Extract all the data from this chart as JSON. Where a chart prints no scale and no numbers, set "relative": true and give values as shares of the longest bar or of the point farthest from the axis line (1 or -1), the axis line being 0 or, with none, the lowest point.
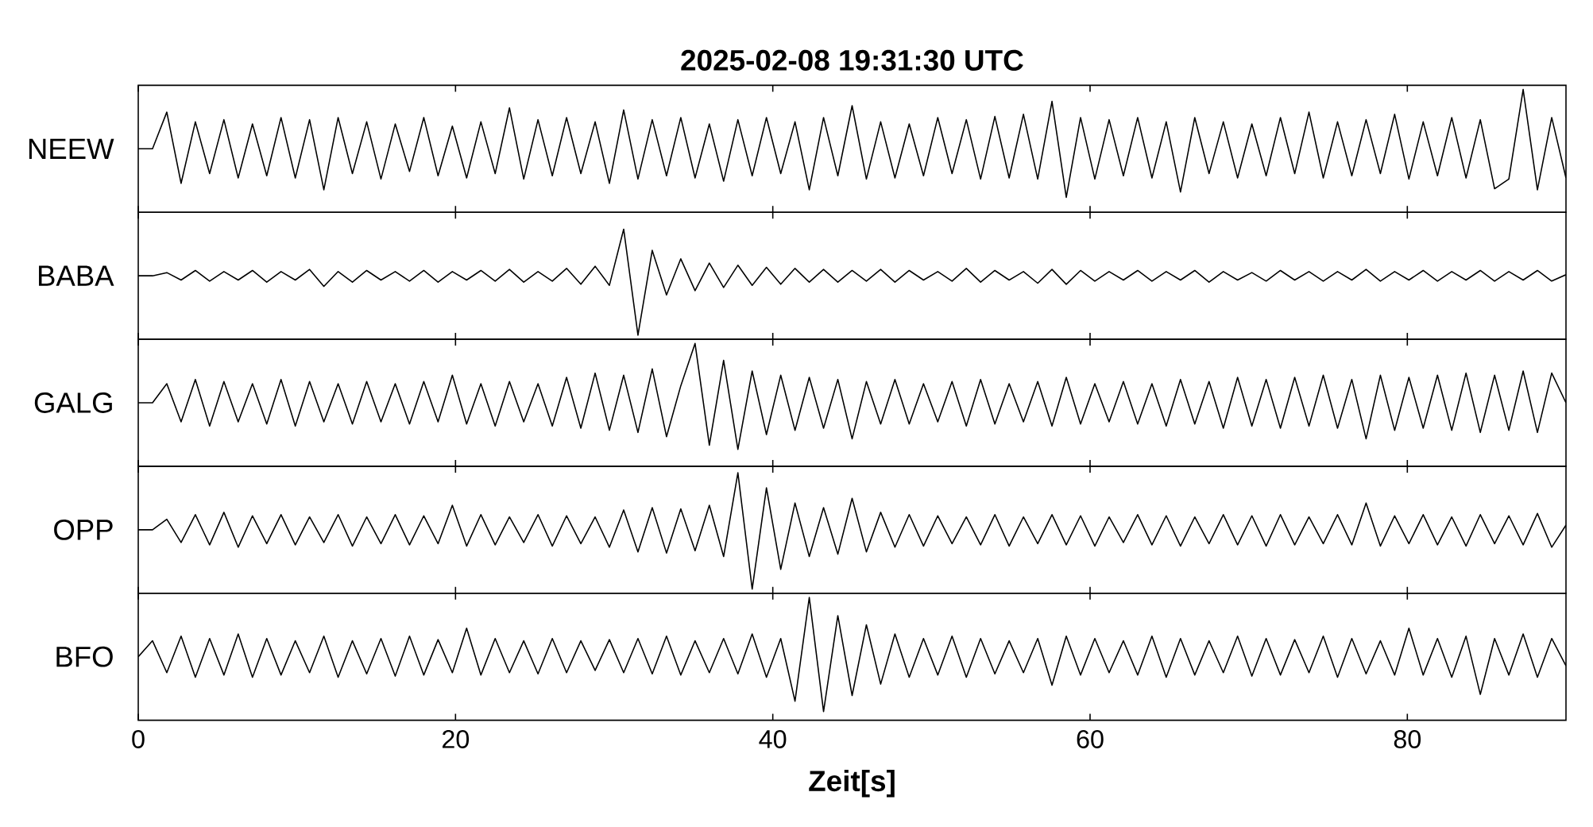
{
  "chart_data": [
    {
      "type": "line",
      "relative": true,
      "title": "2025-02-08 19:31:30 UTC",
      "ylabel": "NEEW",
      "xlim": [
        0,
        90
      ],
      "xticks": [
        0,
        20,
        40,
        60,
        80
      ],
      "tick_labels": false,
      "x": [
        0,
        0.9,
        1.8,
        2.7,
        3.6,
        4.5,
        5.4,
        6.3,
        7.2,
        8.1,
        9,
        9.9,
        10.8,
        11.7,
        12.6,
        13.5,
        14.4,
        15.3,
        16.2,
        17.1,
        18,
        18.9,
        19.8,
        20.7,
        21.6,
        22.5,
        23.4,
        24.3,
        25.2,
        26.1,
        27,
        27.9,
        28.8,
        29.7,
        30.6,
        31.5,
        32.4,
        33.3,
        34.2,
        35.1,
        36,
        36.9,
        37.8,
        38.7,
        39.6,
        40.5,
        41.4,
        42.3,
        43.2,
        44.1,
        45,
        45.9,
        46.8,
        47.7,
        48.6,
        49.5,
        50.4,
        51.3,
        52.2,
        53.1,
        54,
        54.9,
        55.8,
        56.7,
        57.6,
        58.5,
        59.4,
        60.3,
        61.2,
        62.1,
        63,
        63.9,
        64.8,
        65.7,
        66.6,
        67.5,
        68.4,
        69.3,
        70.2,
        71.1,
        72,
        72.9,
        73.8,
        74.7,
        75.6,
        76.5,
        77.4,
        78.3,
        79.2,
        80.1,
        81,
        81.9,
        82.8,
        83.7,
        84.6,
        85.5,
        86.4,
        87.3,
        88.2,
        89.1,
        90
      ],
      "series": [
        {
          "color": "#000000",
          "values": [
            0.45,
            0.45,
            0.79,
            0.13,
            0.7,
            0.22,
            0.72,
            0.18,
            0.68,
            0.2,
            0.74,
            0.18,
            0.72,
            0.07,
            0.74,
            0.22,
            0.7,
            0.17,
            0.68,
            0.24,
            0.74,
            0.2,
            0.66,
            0.18,
            0.7,
            0.22,
            0.83,
            0.17,
            0.72,
            0.2,
            0.74,
            0.22,
            0.7,
            0.13,
            0.81,
            0.17,
            0.72,
            0.2,
            0.74,
            0.18,
            0.68,
            0.15,
            0.72,
            0.2,
            0.74,
            0.22,
            0.7,
            0.07,
            0.74,
            0.2,
            0.85,
            0.17,
            0.7,
            0.18,
            0.68,
            0.2,
            0.74,
            0.22,
            0.72,
            0.17,
            0.75,
            0.18,
            0.77,
            0.17,
            0.89,
            0,
            0.74,
            0.17,
            0.72,
            0.2,
            0.74,
            0.18,
            0.7,
            0.05,
            0.74,
            0.22,
            0.7,
            0.18,
            0.68,
            0.2,
            0.74,
            0.22,
            0.79,
            0.18,
            0.7,
            0.2,
            0.72,
            0.22,
            0.77,
            0.17,
            0.7,
            0.2,
            0.74,
            0.18,
            0.72,
            0.08,
            0.17,
            1,
            0.07,
            0.74,
            0.18
          ]
        }
      ]
    },
    {
      "type": "line",
      "relative": true,
      "ylabel": "BABA",
      "xlim": [
        0,
        90
      ],
      "xticks": [
        0,
        20,
        40,
        60,
        80
      ],
      "tick_labels": false,
      "x": [
        0,
        0.9,
        1.8,
        2.7,
        3.6,
        4.5,
        5.4,
        6.3,
        7.2,
        8.1,
        9,
        9.9,
        10.8,
        11.7,
        12.6,
        13.5,
        14.4,
        15.3,
        16.2,
        17.1,
        18,
        18.9,
        19.8,
        20.7,
        21.6,
        22.5,
        23.4,
        24.3,
        25.2,
        26.1,
        27,
        27.9,
        28.8,
        29.7,
        30.6,
        31.5,
        32.4,
        33.3,
        34.2,
        35.1,
        36,
        36.9,
        37.8,
        38.7,
        39.6,
        40.5,
        41.4,
        42.3,
        43.2,
        44.1,
        45,
        45.9,
        46.8,
        47.7,
        48.6,
        49.5,
        50.4,
        51.3,
        52.2,
        53.1,
        54,
        54.9,
        55.8,
        56.7,
        57.6,
        58.5,
        59.4,
        60.3,
        61.2,
        62.1,
        63,
        63.9,
        64.8,
        65.7,
        66.6,
        67.5,
        68.4,
        69.3,
        70.2,
        71.1,
        72,
        72.9,
        73.8,
        74.7,
        75.6,
        76.5,
        77.4,
        78.3,
        79.2,
        80.1,
        81,
        81.9,
        82.8,
        83.7,
        84.6,
        85.5,
        86.4,
        87.3,
        88.2,
        89.1,
        90
      ],
      "series": [
        {
          "color": "#000000",
          "values": [
            0.56,
            0.56,
            0.59,
            0.52,
            0.61,
            0.51,
            0.6,
            0.52,
            0.61,
            0.5,
            0.6,
            0.52,
            0.62,
            0.46,
            0.6,
            0.5,
            0.61,
            0.52,
            0.6,
            0.51,
            0.61,
            0.5,
            0.6,
            0.52,
            0.61,
            0.51,
            0.62,
            0.5,
            0.6,
            0.51,
            0.63,
            0.48,
            0.65,
            0.47,
            1,
            0,
            0.8,
            0.38,
            0.72,
            0.42,
            0.68,
            0.45,
            0.66,
            0.47,
            0.64,
            0.48,
            0.63,
            0.5,
            0.62,
            0.5,
            0.61,
            0.51,
            0.62,
            0.5,
            0.61,
            0.52,
            0.6,
            0.51,
            0.63,
            0.5,
            0.61,
            0.52,
            0.6,
            0.49,
            0.62,
            0.48,
            0.61,
            0.51,
            0.6,
            0.52,
            0.61,
            0.51,
            0.6,
            0.52,
            0.61,
            0.5,
            0.6,
            0.52,
            0.59,
            0.51,
            0.61,
            0.52,
            0.6,
            0.51,
            0.6,
            0.52,
            0.62,
            0.51,
            0.6,
            0.52,
            0.61,
            0.51,
            0.6,
            0.52,
            0.61,
            0.51,
            0.6,
            0.52,
            0.61,
            0.51,
            0.57
          ]
        }
      ]
    },
    {
      "type": "line",
      "relative": true,
      "ylabel": "GALG",
      "xlim": [
        0,
        90
      ],
      "xticks": [
        0,
        20,
        40,
        60,
        80
      ],
      "tick_labels": false,
      "x": [
        0,
        0.9,
        1.8,
        2.7,
        3.6,
        4.5,
        5.4,
        6.3,
        7.2,
        8.1,
        9,
        9.9,
        10.8,
        11.7,
        12.6,
        13.5,
        14.4,
        15.3,
        16.2,
        17.1,
        18,
        18.9,
        19.8,
        20.7,
        21.6,
        22.5,
        23.4,
        24.3,
        25.2,
        26.1,
        27,
        27.9,
        28.8,
        29.7,
        30.6,
        31.5,
        32.4,
        33.3,
        34.2,
        35.1,
        36,
        36.9,
        37.8,
        38.7,
        39.6,
        40.5,
        41.4,
        42.3,
        43.2,
        44.1,
        45,
        45.9,
        46.8,
        47.7,
        48.6,
        49.5,
        50.4,
        51.3,
        52.2,
        53.1,
        54,
        54.9,
        55.8,
        56.7,
        57.6,
        58.5,
        59.4,
        60.3,
        61.2,
        62.1,
        63,
        63.9,
        64.8,
        65.7,
        66.6,
        67.5,
        68.4,
        69.3,
        70.2,
        71.1,
        72,
        72.9,
        73.8,
        74.7,
        75.6,
        76.5,
        77.4,
        78.3,
        79.2,
        80.1,
        81,
        81.9,
        82.8,
        83.7,
        84.6,
        85.5,
        86.4,
        87.3,
        88.2,
        89.1,
        90
      ],
      "series": [
        {
          "color": "#000000",
          "values": [
            0.44,
            0.44,
            0.62,
            0.26,
            0.66,
            0.22,
            0.64,
            0.26,
            0.62,
            0.24,
            0.66,
            0.22,
            0.64,
            0.26,
            0.62,
            0.24,
            0.64,
            0.26,
            0.62,
            0.24,
            0.64,
            0.26,
            0.7,
            0.24,
            0.62,
            0.22,
            0.64,
            0.26,
            0.62,
            0.22,
            0.68,
            0.2,
            0.72,
            0.18,
            0.7,
            0.16,
            0.76,
            0.12,
            0.6,
            1,
            0.04,
            0.84,
            0,
            0.74,
            0.14,
            0.7,
            0.18,
            0.68,
            0.2,
            0.66,
            0.1,
            0.64,
            0.24,
            0.66,
            0.24,
            0.62,
            0.26,
            0.64,
            0.22,
            0.66,
            0.24,
            0.62,
            0.26,
            0.64,
            0.22,
            0.68,
            0.24,
            0.62,
            0.26,
            0.64,
            0.24,
            0.62,
            0.22,
            0.66,
            0.24,
            0.64,
            0.2,
            0.68,
            0.22,
            0.66,
            0.2,
            0.68,
            0.22,
            0.7,
            0.2,
            0.66,
            0.1,
            0.7,
            0.18,
            0.68,
            0.2,
            0.7,
            0.18,
            0.72,
            0.16,
            0.7,
            0.18,
            0.74,
            0.16,
            0.72,
            0.44
          ]
        }
      ]
    },
    {
      "type": "line",
      "relative": true,
      "ylabel": "OPP",
      "xlim": [
        0,
        90
      ],
      "xticks": [
        0,
        20,
        40,
        60,
        80
      ],
      "tick_labels": false,
      "x": [
        0,
        0.9,
        1.8,
        2.7,
        3.6,
        4.5,
        5.4,
        6.3,
        7.2,
        8.1,
        9,
        9.9,
        10.8,
        11.7,
        12.6,
        13.5,
        14.4,
        15.3,
        16.2,
        17.1,
        18,
        18.9,
        19.8,
        20.7,
        21.6,
        22.5,
        23.4,
        24.3,
        25.2,
        26.1,
        27,
        27.9,
        28.8,
        29.7,
        30.6,
        31.5,
        32.4,
        33.3,
        34.2,
        35.1,
        36,
        36.9,
        37.8,
        38.7,
        39.6,
        40.5,
        41.4,
        42.3,
        43.2,
        44.1,
        45,
        45.9,
        46.8,
        47.7,
        48.6,
        49.5,
        50.4,
        51.3,
        52.2,
        53.1,
        54,
        54.9,
        55.8,
        56.7,
        57.6,
        58.5,
        59.4,
        60.3,
        61.2,
        62.1,
        63,
        63.9,
        64.8,
        65.7,
        66.6,
        67.5,
        68.4,
        69.3,
        70.2,
        71.1,
        72,
        72.9,
        73.8,
        74.7,
        75.6,
        76.5,
        77.4,
        78.3,
        79.2,
        80.1,
        81,
        81.9,
        82.8,
        83.7,
        84.6,
        85.5,
        86.4,
        87.3,
        88.2,
        89.1,
        90
      ],
      "series": [
        {
          "color": "#000000",
          "values": [
            0.51,
            0.51,
            0.6,
            0.4,
            0.64,
            0.38,
            0.66,
            0.36,
            0.63,
            0.39,
            0.64,
            0.38,
            0.62,
            0.4,
            0.64,
            0.37,
            0.62,
            0.39,
            0.64,
            0.38,
            0.63,
            0.39,
            0.72,
            0.37,
            0.64,
            0.38,
            0.62,
            0.4,
            0.64,
            0.37,
            0.63,
            0.39,
            0.62,
            0.36,
            0.68,
            0.32,
            0.7,
            0.31,
            0.69,
            0.33,
            0.72,
            0.28,
            1,
            0,
            0.87,
            0.17,
            0.74,
            0.28,
            0.7,
            0.3,
            0.78,
            0.32,
            0.66,
            0.36,
            0.64,
            0.37,
            0.63,
            0.39,
            0.62,
            0.38,
            0.64,
            0.37,
            0.62,
            0.39,
            0.64,
            0.38,
            0.63,
            0.37,
            0.62,
            0.4,
            0.64,
            0.38,
            0.63,
            0.37,
            0.62,
            0.39,
            0.64,
            0.38,
            0.63,
            0.37,
            0.64,
            0.38,
            0.62,
            0.39,
            0.64,
            0.38,
            0.74,
            0.37,
            0.63,
            0.39,
            0.64,
            0.38,
            0.62,
            0.37,
            0.64,
            0.39,
            0.63,
            0.38,
            0.65,
            0.36,
            0.55
          ]
        }
      ]
    },
    {
      "type": "line",
      "relative": true,
      "ylabel": "BFO",
      "xlabel": "Zeit[s]",
      "xlim": [
        0,
        90
      ],
      "xticks": [
        0,
        20,
        40,
        60,
        80
      ],
      "tick_labels": "x",
      "x": [
        0,
        0.9,
        1.8,
        2.7,
        3.6,
        4.5,
        5.4,
        6.3,
        7.2,
        8.1,
        9,
        9.9,
        10.8,
        11.7,
        12.6,
        13.5,
        14.4,
        15.3,
        16.2,
        17.1,
        18,
        18.9,
        19.8,
        20.7,
        21.6,
        22.5,
        23.4,
        24.3,
        25.2,
        26.1,
        27,
        27.9,
        28.8,
        29.7,
        30.6,
        31.5,
        32.4,
        33.3,
        34.2,
        35.1,
        36,
        36.9,
        37.8,
        38.7,
        39.6,
        40.5,
        41.4,
        42.3,
        43.2,
        44.1,
        45,
        45.9,
        46.8,
        47.7,
        48.6,
        49.5,
        50.4,
        51.3,
        52.2,
        53.1,
        54,
        54.9,
        55.8,
        56.7,
        57.6,
        58.5,
        59.4,
        60.3,
        61.2,
        62.1,
        63,
        63.9,
        64.8,
        65.7,
        66.6,
        67.5,
        68.4,
        69.3,
        70.2,
        71.1,
        72,
        72.9,
        73.8,
        74.7,
        75.6,
        76.5,
        77.4,
        78.3,
        79.2,
        80.1,
        81,
        81.9,
        82.8,
        83.7,
        84.6,
        85.5,
        86.4,
        87.3,
        88.2,
        89.1,
        90
      ],
      "series": [
        {
          "color": "#000000",
          "values": [
            0.48,
            0.62,
            0.34,
            0.66,
            0.3,
            0.64,
            0.32,
            0.68,
            0.3,
            0.64,
            0.32,
            0.62,
            0.34,
            0.66,
            0.3,
            0.62,
            0.33,
            0.64,
            0.31,
            0.66,
            0.32,
            0.63,
            0.34,
            0.73,
            0.32,
            0.64,
            0.34,
            0.62,
            0.33,
            0.64,
            0.34,
            0.62,
            0.36,
            0.63,
            0.34,
            0.64,
            0.33,
            0.66,
            0.32,
            0.62,
            0.34,
            0.64,
            0.33,
            0.68,
            0.3,
            0.64,
            0.09,
            1,
            0,
            0.84,
            0.14,
            0.76,
            0.24,
            0.68,
            0.3,
            0.64,
            0.32,
            0.66,
            0.3,
            0.64,
            0.33,
            0.62,
            0.34,
            0.64,
            0.23,
            0.66,
            0.32,
            0.64,
            0.34,
            0.62,
            0.32,
            0.66,
            0.3,
            0.64,
            0.32,
            0.62,
            0.34,
            0.66,
            0.31,
            0.64,
            0.32,
            0.63,
            0.34,
            0.66,
            0.3,
            0.64,
            0.33,
            0.62,
            0.32,
            0.73,
            0.32,
            0.64,
            0.3,
            0.66,
            0.15,
            0.64,
            0.32,
            0.68,
            0.3,
            0.64,
            0.4
          ]
        }
      ]
    }
  ]
}
